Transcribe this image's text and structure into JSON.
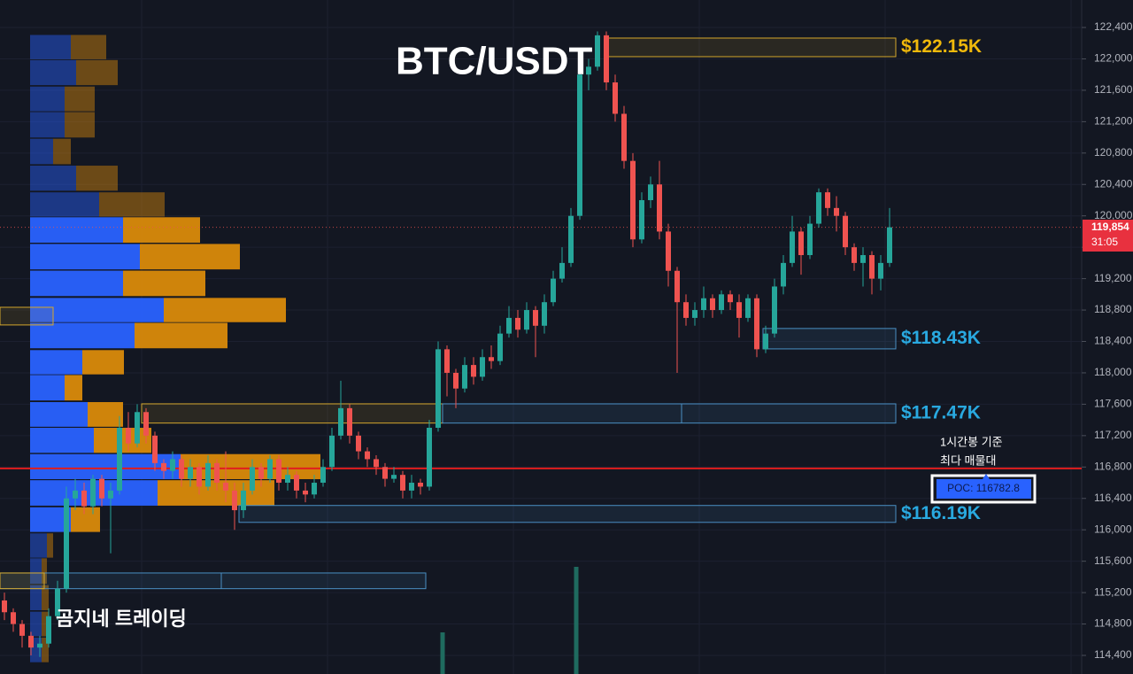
{
  "chart_data": {
    "type": "candlestick",
    "title": "BTC/USDT",
    "watermark": "곰지네 트레이딩",
    "ylim": [
      114163,
      122750
    ],
    "yticks": [
      {
        "value": 114400,
        "label": "114,400"
      },
      {
        "value": 114800,
        "label": "114,800"
      },
      {
        "value": 115200,
        "label": "115,200"
      },
      {
        "value": 115600,
        "label": "115,600"
      },
      {
        "value": 116000,
        "label": "116,000"
      },
      {
        "value": 116400,
        "label": "116,400"
      },
      {
        "value": 116800,
        "label": "116,800"
      },
      {
        "value": 117200,
        "label": "117,200"
      },
      {
        "value": 117600,
        "label": "117,600"
      },
      {
        "value": 118000,
        "label": "118,000"
      },
      {
        "value": 118400,
        "label": "118,400"
      },
      {
        "value": 118800,
        "label": "118,800"
      },
      {
        "value": 119200,
        "label": "119,200"
      },
      {
        "value": 119600,
        "label": "119,600"
      },
      {
        "value": 120000,
        "label": "120,000"
      },
      {
        "value": 120400,
        "label": "120,400"
      },
      {
        "value": 120800,
        "label": "120,800"
      },
      {
        "value": 121200,
        "label": "121,200"
      },
      {
        "value": 121600,
        "label": "121,600"
      },
      {
        "value": 122000,
        "label": "122,000"
      },
      {
        "value": 122400,
        "label": "122,400"
      }
    ],
    "grid": true,
    "up_color": "#26a69a",
    "down_color": "#ef5350",
    "candles": [
      [
        115100,
        115200,
        114850,
        114950
      ],
      [
        114950,
        115000,
        114700,
        114800
      ],
      [
        114800,
        114850,
        114500,
        114650
      ],
      [
        114650,
        114700,
        114400,
        114500
      ],
      [
        114500,
        114650,
        114380,
        114550
      ],
      [
        114550,
        115000,
        114500,
        114900
      ],
      [
        114900,
        115350,
        114850,
        115250
      ],
      [
        115250,
        116550,
        115200,
        116400
      ],
      [
        116400,
        116650,
        116250,
        116500
      ],
      [
        116500,
        116600,
        116200,
        116300
      ],
      [
        116300,
        116700,
        116200,
        116650
      ],
      [
        116650,
        116700,
        116300,
        116400
      ],
      [
        116400,
        116600,
        115700,
        116500
      ],
      [
        116500,
        117450,
        116450,
        117300
      ],
      [
        117300,
        117500,
        117000,
        117100
      ],
      [
        117100,
        117600,
        117050,
        117500
      ],
      [
        117500,
        117550,
        117100,
        117200
      ],
      [
        117200,
        117250,
        116750,
        116850
      ],
      [
        116850,
        116900,
        116650,
        116750
      ],
      [
        116750,
        117000,
        116650,
        116900
      ],
      [
        116900,
        116950,
        116550,
        116650
      ],
      [
        116650,
        116900,
        116550,
        116800
      ],
      [
        116800,
        116850,
        116450,
        116550
      ],
      [
        116550,
        116950,
        116500,
        116850
      ],
      [
        116850,
        116900,
        116500,
        116600
      ],
      [
        116600,
        117000,
        116350,
        116500
      ],
      [
        116500,
        116600,
        116000,
        116250
      ],
      [
        116250,
        116600,
        116150,
        116500
      ],
      [
        116500,
        116900,
        116450,
        116800
      ],
      [
        116800,
        116850,
        116550,
        116650
      ],
      [
        116650,
        116950,
        116600,
        116900
      ],
      [
        116900,
        116950,
        116500,
        116600
      ],
      [
        116600,
        116800,
        116500,
        116700
      ],
      [
        116700,
        116750,
        116400,
        116500
      ],
      [
        116500,
        116600,
        116350,
        116450
      ],
      [
        116450,
        116700,
        116400,
        116600
      ],
      [
        116600,
        116900,
        116550,
        116800
      ],
      [
        116800,
        117300,
        116750,
        117200
      ],
      [
        117200,
        117900,
        117150,
        117550
      ],
      [
        117550,
        117600,
        117100,
        117200
      ],
      [
        117200,
        117250,
        116900,
        117000
      ],
      [
        117000,
        117050,
        116800,
        116900
      ],
      [
        116900,
        116950,
        116700,
        116800
      ],
      [
        116800,
        116850,
        116550,
        116650
      ],
      [
        116650,
        116800,
        116600,
        116700
      ],
      [
        116700,
        116750,
        116400,
        116500
      ],
      [
        116500,
        116700,
        116400,
        116600
      ],
      [
        116600,
        116650,
        116450,
        116550
      ],
      [
        116550,
        117400,
        116500,
        117300
      ],
      [
        117300,
        118400,
        117250,
        118300
      ],
      [
        118300,
        118350,
        117700,
        118000
      ],
      [
        118000,
        118050,
        117550,
        117800
      ],
      [
        117800,
        118200,
        117750,
        118100
      ],
      [
        118100,
        118200,
        117850,
        117950
      ],
      [
        117950,
        118300,
        117900,
        118200
      ],
      [
        118200,
        118350,
        118050,
        118150
      ],
      [
        118150,
        118600,
        118100,
        118500
      ],
      [
        118500,
        118850,
        118450,
        118700
      ],
      [
        118700,
        118800,
        118450,
        118550
      ],
      [
        118550,
        118900,
        118500,
        118800
      ],
      [
        118800,
        118850,
        118200,
        118600
      ],
      [
        118600,
        119000,
        118500,
        118900
      ],
      [
        118900,
        119300,
        118850,
        119200
      ],
      [
        119200,
        119600,
        119150,
        119400
      ],
      [
        119400,
        120100,
        119350,
        120000
      ],
      [
        120000,
        121900,
        119950,
        121800
      ],
      [
        121800,
        122000,
        121600,
        121900
      ],
      [
        121900,
        122350,
        121850,
        122300
      ],
      [
        122300,
        122350,
        121600,
        121700
      ],
      [
        121700,
        121800,
        121200,
        121300
      ],
      [
        121300,
        121400,
        120600,
        120700
      ],
      [
        120700,
        120800,
        119600,
        119700
      ],
      [
        119700,
        120300,
        119650,
        120200
      ],
      [
        120200,
        120500,
        120100,
        120400
      ],
      [
        120400,
        120700,
        119700,
        119800
      ],
      [
        119800,
        119900,
        119100,
        119300
      ],
      [
        119300,
        119350,
        118000,
        118900
      ],
      [
        118900,
        119000,
        118600,
        118700
      ],
      [
        118700,
        118900,
        118600,
        118800
      ],
      [
        118800,
        119100,
        118700,
        118950
      ],
      [
        118950,
        119000,
        118700,
        118800
      ],
      [
        118800,
        119050,
        118750,
        119000
      ],
      [
        119000,
        119050,
        118800,
        118900
      ],
      [
        118900,
        119000,
        118450,
        118700
      ],
      [
        118700,
        119000,
        118650,
        118950
      ],
      [
        118950,
        119000,
        118200,
        118300
      ],
      [
        118300,
        118600,
        118250,
        118500
      ],
      [
        118500,
        119200,
        118450,
        119100
      ],
      [
        119100,
        119500,
        119000,
        119400
      ],
      [
        119400,
        120000,
        119350,
        119800
      ],
      [
        119800,
        119850,
        119250,
        119500
      ],
      [
        119500,
        120000,
        119450,
        119900
      ],
      [
        119900,
        120350,
        119850,
        120300
      ],
      [
        120300,
        120350,
        120000,
        120100
      ],
      [
        120100,
        120250,
        119800,
        120000
      ],
      [
        120000,
        120050,
        119500,
        119600
      ],
      [
        119600,
        119650,
        119300,
        119400
      ],
      [
        119400,
        119600,
        119100,
        119500
      ],
      [
        119500,
        119550,
        119000,
        119200
      ],
      [
        119200,
        119500,
        119050,
        119400
      ],
      [
        119400,
        120100,
        119350,
        119854
      ]
    ],
    "volume_profile": {
      "buy_color": "#2962ff",
      "sell_color": "#d98a0b",
      "value_area": {
        "low": 115950,
        "high": 120000
      },
      "rows": [
        {
          "price": 122150,
          "buy": 46,
          "sell": 40
        },
        {
          "price": 121825,
          "buy": 52,
          "sell": 47
        },
        {
          "price": 121490,
          "buy": 39,
          "sell": 34
        },
        {
          "price": 121160,
          "buy": 39,
          "sell": 34
        },
        {
          "price": 120820,
          "buy": 26,
          "sell": 20
        },
        {
          "price": 120480,
          "buy": 52,
          "sell": 47
        },
        {
          "price": 120145,
          "buy": 78,
          "sell": 74
        },
        {
          "price": 119820,
          "buy": 105,
          "sell": 87
        },
        {
          "price": 119480,
          "buy": 124,
          "sell": 113
        },
        {
          "price": 119140,
          "buy": 105,
          "sell": 93
        },
        {
          "price": 118800,
          "buy": 151,
          "sell": 138
        },
        {
          "price": 118475,
          "buy": 118,
          "sell": 105
        },
        {
          "price": 118135,
          "buy": 59,
          "sell": 47
        },
        {
          "price": 117810,
          "buy": 39,
          "sell": 20
        },
        {
          "price": 117470,
          "buy": 65,
          "sell": 40
        },
        {
          "price": 117140,
          "buy": 72,
          "sell": 65
        },
        {
          "price": 116805,
          "buy": 170,
          "sell": 158
        },
        {
          "price": 116470,
          "buy": 144,
          "sell": 132
        },
        {
          "price": 116130,
          "buy": 46,
          "sell": 33
        },
        {
          "price": 115800,
          "buy": 19,
          "sell": 7
        },
        {
          "price": 115475,
          "buy": 13,
          "sell": 6
        },
        {
          "price": 115135,
          "buy": 13,
          "sell": 8
        },
        {
          "price": 114800,
          "buy": 13,
          "sell": 8
        },
        {
          "price": 114470,
          "buy": 13,
          "sell": 8
        }
      ]
    },
    "zones": [
      {
        "high": 122265,
        "low": 122028,
        "color": "#d4a72c",
        "label": "$122.15K"
      },
      {
        "high": 118565,
        "low": 118305,
        "color": "#4a8fc4",
        "label": "$118.43K"
      },
      {
        "high": 117605,
        "low": 117360,
        "color": "#d4a72c"
      },
      {
        "high": 117605,
        "low": 117360,
        "color": "#4a8fc4",
        "label": "$117.47K"
      },
      {
        "high": 116310,
        "low": 116095,
        "color": "#4a8fc4",
        "label": "$116.19K"
      },
      {
        "high": 115450,
        "low": 115250,
        "color": "#4a8fc4"
      },
      {
        "high": 118835,
        "low": 118610,
        "color": "#d4a72c"
      },
      {
        "high": 115450,
        "low": 115250,
        "color": "#d4a72c"
      }
    ],
    "poc": {
      "value": 116782.8,
      "label": "POC: 116782.8",
      "note": [
        "1시간봉 기준",
        "최다 매물대"
      ]
    },
    "current_price": {
      "value": 119854,
      "label": "119,854",
      "countdown": "31:05"
    },
    "volume_bars": [
      47,
      121
    ]
  }
}
